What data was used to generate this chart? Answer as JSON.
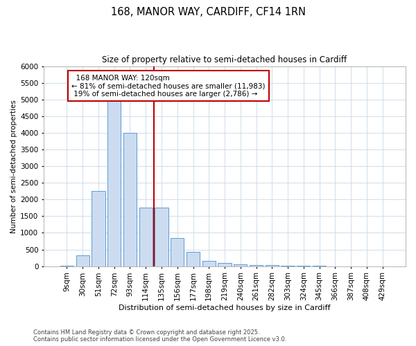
{
  "title1": "168, MANOR WAY, CARDIFF, CF14 1RN",
  "title2": "Size of property relative to semi-detached houses in Cardiff",
  "xlabel": "Distribution of semi-detached houses by size in Cardiff",
  "ylabel": "Number of semi-detached properties",
  "property_label": "168 MANOR WAY: 120sqm",
  "pct_smaller": 81,
  "pct_larger": 19,
  "n_smaller": 11983,
  "n_larger": 2786,
  "footnote1": "Contains HM Land Registry data © Crown copyright and database right 2025.",
  "footnote2": "Contains public sector information licensed under the Open Government Licence v3.0.",
  "bar_color": "#ccdcf0",
  "bar_edge_color": "#5b9bd5",
  "vline_color": "#c00000",
  "annotation_box_color": "#c00000",
  "background_color": "#ffffff",
  "grid_color": "#c8d8e8",
  "categories": [
    "9sqm",
    "30sqm",
    "51sqm",
    "72sqm",
    "93sqm",
    "114sqm",
    "135sqm",
    "156sqm",
    "177sqm",
    "198sqm",
    "219sqm",
    "240sqm",
    "261sqm",
    "282sqm",
    "303sqm",
    "324sqm",
    "345sqm",
    "366sqm",
    "387sqm",
    "408sqm",
    "429sqm"
  ],
  "values": [
    10,
    320,
    2250,
    4950,
    4000,
    1750,
    1750,
    850,
    420,
    160,
    100,
    65,
    40,
    25,
    15,
    8,
    5,
    3,
    2,
    2,
    1
  ],
  "ylim": [
    0,
    6000
  ],
  "yticks": [
    0,
    500,
    1000,
    1500,
    2000,
    2500,
    3000,
    3500,
    4000,
    4500,
    5000,
    5500,
    6000
  ],
  "vline_index": 5.5
}
